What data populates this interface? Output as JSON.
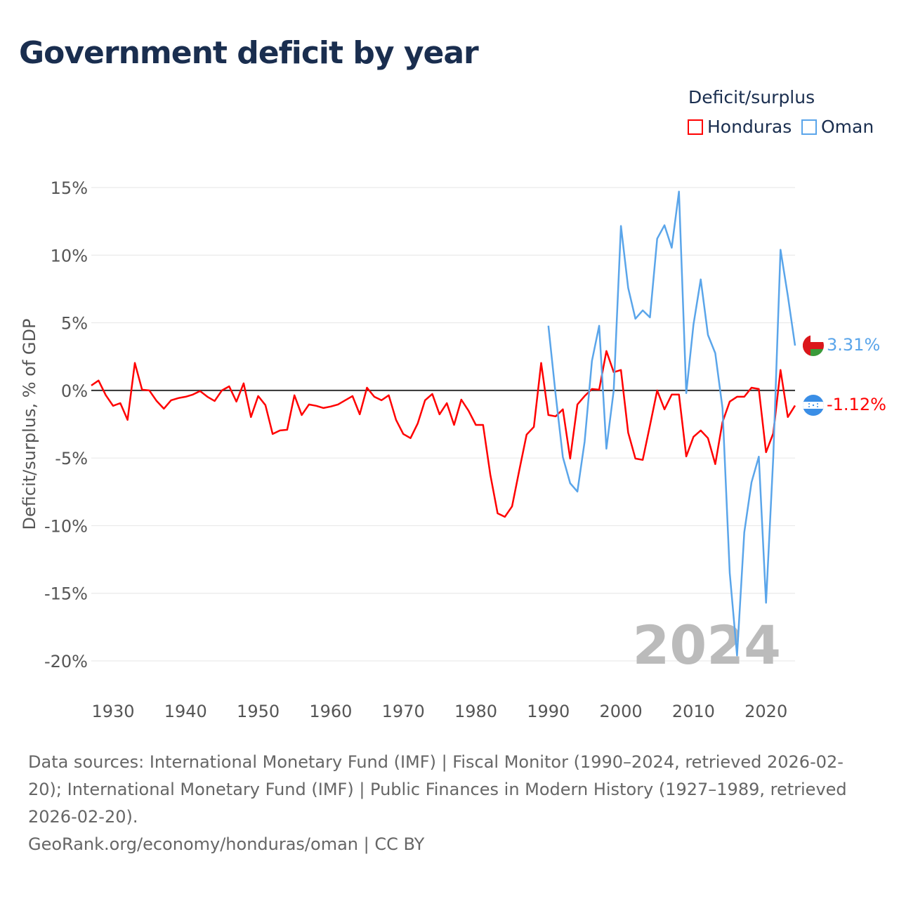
{
  "title": "Government deficit by year",
  "legend": {
    "title": "Deficit/surplus",
    "items": [
      {
        "label": "Honduras",
        "color": "#ff0000"
      },
      {
        "label": "Oman",
        "color": "#5aa5ea"
      }
    ]
  },
  "footer": {
    "sources": "Data sources: International Monetary Fund (IMF) | Fiscal Monitor (1990–2024, retrieved 2026-02-20); International Monetary Fund (IMF) | Public Finances in Modern History (1927–1989, retrieved 2026-02-20).",
    "credit": "GeoRank.org/economy/honduras/oman | CC BY"
  },
  "chart_data": {
    "type": "line",
    "title": "Government deficit by year",
    "xlabel": "",
    "ylabel": "Deficit/surplus, % of GDP",
    "xlim": [
      1927,
      2024
    ],
    "ylim": [
      -20,
      15
    ],
    "yticks": [
      15,
      10,
      5,
      0,
      -5,
      -10,
      -15,
      -20
    ],
    "ytick_labels": [
      "15%",
      "10%",
      "5%",
      "0%",
      "-5%",
      "-10%",
      "-15%",
      "-20%"
    ],
    "xticks": [
      1930,
      1940,
      1950,
      1960,
      1970,
      1980,
      1990,
      2000,
      2010,
      2020
    ],
    "xtick_labels": [
      "1930",
      "1940",
      "1950",
      "1960",
      "1970",
      "1980",
      "1990",
      "2000",
      "2010",
      "2020"
    ],
    "year_watermark": "2024",
    "grid": true,
    "legend_position": "top-right",
    "series": [
      {
        "name": "Honduras",
        "color": "#ff0000",
        "end_label": "-1.12%",
        "start_year": 1927,
        "values": [
          0.36,
          0.73,
          -0.36,
          -1.14,
          -0.94,
          -2.18,
          2.03,
          0.05,
          0,
          -0.78,
          -1.35,
          -0.73,
          -0.57,
          -0.47,
          -0.31,
          -0.05,
          -0.47,
          -0.78,
          0,
          0.3,
          -0.83,
          0.52,
          -1.97,
          -0.42,
          -1.09,
          -3.22,
          -2.96,
          -2.91,
          -0.36,
          -1.82,
          -1.04,
          -1.14,
          -1.3,
          -1.19,
          -1.04,
          -0.73,
          -0.42,
          -1.77,
          0.2,
          -0.47,
          -0.73,
          -0.36,
          -2.18,
          -3.22,
          -3.53,
          -2.44,
          -0.73,
          -0.26,
          -1.77,
          -0.94,
          -2.55,
          -0.68,
          -1.51,
          -2.55,
          -2.55,
          -6.23,
          -9.09,
          -9.35,
          -8.57,
          -5.87,
          -3.27,
          -2.7,
          2.03,
          -1.82,
          -1.92,
          -1.4,
          -5.04,
          -1.04,
          -0.42,
          0.1,
          0.05,
          2.91,
          1.35,
          1.51,
          -3.12,
          -5.04,
          -5.14,
          -2.6,
          0,
          -1.4,
          -0.31,
          -0.31,
          -4.88,
          -3.43,
          -2.96,
          -3.53,
          -5.45,
          -2.34,
          -0.83,
          -0.47,
          -0.47,
          0.2,
          0.1,
          -4.57,
          -3.17,
          1.51,
          -1.97,
          -1.12
        ]
      },
      {
        "name": "Oman",
        "color": "#5aa5ea",
        "end_label": "3.31%",
        "start_year": 1990,
        "values": [
          4.78,
          -0.3,
          -4.93,
          -6.86,
          -7.48,
          -3.79,
          2.18,
          4.78,
          -4.31,
          0,
          12.16,
          7.58,
          5.3,
          5.92,
          5.4,
          11.22,
          12.21,
          10.55,
          14.7,
          -0.2,
          4.88,
          8.21,
          4.1,
          2.75,
          -1.3,
          -13.5,
          -19.6,
          -10.5,
          -6.8,
          -4.9,
          -15.7,
          -4.9,
          10.4,
          7.0,
          3.31
        ]
      }
    ]
  }
}
